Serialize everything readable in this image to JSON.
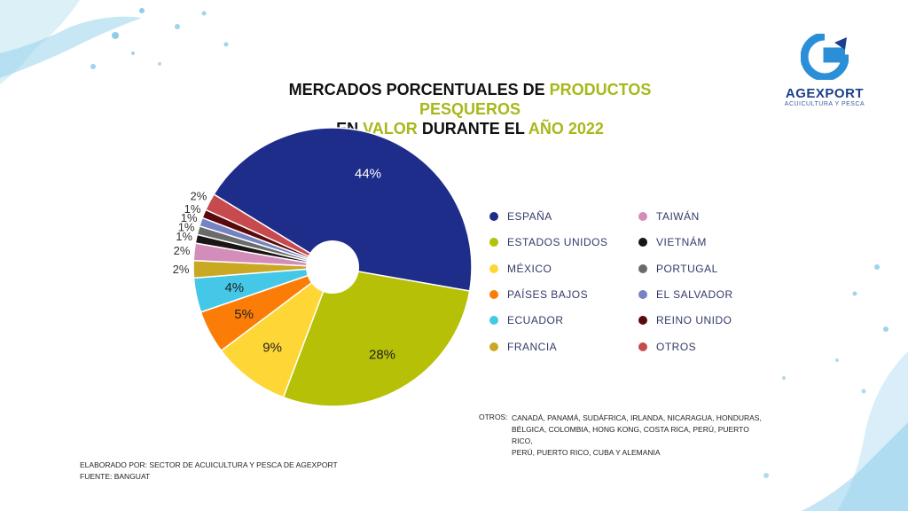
{
  "title": {
    "line1_a": "MERCADOS PORCENTUALES DE ",
    "line1_b": "PRODUCTOS PESQUEROS",
    "line2_a": "EN ",
    "line2_b": "VALOR",
    "line2_c": " DURANTE EL ",
    "line2_d": "AÑO 2022"
  },
  "logo": {
    "name": "AGEXPORT",
    "subtitle": "ACUICULTURA Y PESCA"
  },
  "chart_data": {
    "type": "pie",
    "title": "MERCADOS PORCENTUALES DE PRODUCTOS PESQUEROS EN VALOR DURANTE EL AÑO 2022",
    "donut": true,
    "labels": [
      "ESPAÑA",
      "ESTADOS UNIDOS",
      "MÉXICO",
      "PAÍSES BAJOS",
      "ECUADOR",
      "FRANCIA",
      "TAIWÁN",
      "VIETNÁM",
      "PORTUGAL",
      "EL SALVADOR",
      "REINO UNIDO",
      "OTROS"
    ],
    "values": [
      44,
      28,
      9,
      5,
      4,
      2,
      2,
      1,
      1,
      1,
      1,
      2
    ],
    "value_labels": [
      "44%",
      "28%",
      "9%",
      "5%",
      "4%",
      "2%",
      "2%",
      "1%",
      "1%",
      "1%",
      "1%",
      "2%"
    ],
    "colors": [
      "#1f2d8a",
      "#b5c006",
      "#fed635",
      "#fb7d07",
      "#45c8e8",
      "#c9a823",
      "#d48cba",
      "#1a1414",
      "#6b6b6b",
      "#7583c2",
      "#5a0a0a",
      "#c74a4e"
    ],
    "legend_position": "right"
  },
  "otros": {
    "label": "OTROS:",
    "lines": [
      "CANADÁ, PANAMÁ, SUDÁFRICA, IRLANDA, NICARAGUA, HONDURAS,",
      "BÉLGICA, COLOMBIA, HONG KONG, COSTA RICA, PERÚ, PUERTO RICO,",
      "PERÚ, PUERTO RICO, CUBA Y ALEMANIA"
    ]
  },
  "footer": {
    "line1": "ELABORADO POR: SECTOR DE ACUICULTURA Y PESCA DE AGEXPORT",
    "line2": "FUENTE:  BANGUAT"
  }
}
